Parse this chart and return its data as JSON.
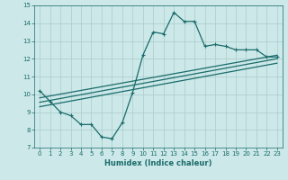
{
  "xlabel": "Humidex (Indice chaleur)",
  "bg_color": "#cce8e8",
  "grid_color": "#aacccc",
  "line_color": "#1a6b6b",
  "xlim": [
    -0.5,
    23.5
  ],
  "ylim": [
    7,
    15
  ],
  "xticks": [
    0,
    1,
    2,
    3,
    4,
    5,
    6,
    7,
    8,
    9,
    10,
    11,
    12,
    13,
    14,
    15,
    16,
    17,
    18,
    19,
    20,
    21,
    22,
    23
  ],
  "yticks": [
    7,
    8,
    9,
    10,
    11,
    12,
    13,
    14,
    15
  ],
  "main_x": [
    0,
    1,
    2,
    3,
    4,
    5,
    6,
    7,
    8,
    9,
    10,
    11,
    12,
    13,
    14,
    15,
    16,
    17,
    18,
    19,
    20,
    21,
    22,
    23
  ],
  "main_y": [
    10.2,
    9.6,
    9.0,
    8.8,
    8.3,
    8.3,
    7.6,
    7.5,
    8.4,
    10.1,
    12.2,
    13.5,
    13.4,
    14.6,
    14.1,
    14.1,
    12.7,
    12.8,
    12.7,
    12.5,
    12.5,
    12.5,
    12.1,
    12.1
  ],
  "line2_x": [
    0,
    23
  ],
  "line2_y": [
    9.8,
    12.2
  ],
  "line3_x": [
    0,
    23
  ],
  "line3_y": [
    9.55,
    12.0
  ],
  "line4_x": [
    0,
    23
  ],
  "line4_y": [
    9.3,
    11.75
  ],
  "ticksize": 5,
  "linewidth": 0.9,
  "markersize": 2.5
}
